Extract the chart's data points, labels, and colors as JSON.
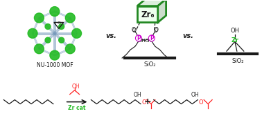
{
  "background_color": "#ffffff",
  "fig_width": 3.78,
  "fig_height": 1.84,
  "dpi": 100,
  "mof_label": "NU-1000 MOF",
  "vs_text": "vs.",
  "vs2_text": "vs.",
  "sio2_text1": "SiO₂",
  "sio2_text2": "SiO₂",
  "zr6_text": "Zr₆",
  "zr_text": "Zr",
  "p_text": "P",
  "oh_text": "OH",
  "zr_cat_text": "Zr cat",
  "plus_text": "+",
  "green_color": "#22bb22",
  "red_color": "#ff2222",
  "magenta_color": "#cc00cc",
  "dark_color": "#1a1a1a",
  "box_green": "#228822",
  "mof_blue": "#7799bb",
  "mof_ring_color": "#6688aa"
}
